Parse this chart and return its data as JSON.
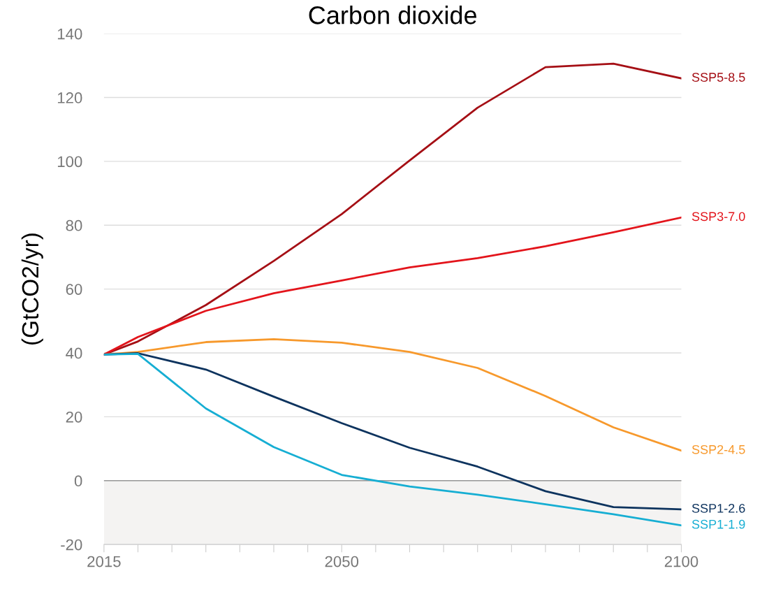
{
  "chart_data": {
    "type": "line",
    "title": "Carbon dioxide",
    "ylabel": "(GtCO2/yr)",
    "x": [
      2015,
      2020,
      2030,
      2040,
      2050,
      2060,
      2070,
      2080,
      2090,
      2100
    ],
    "series": [
      {
        "name": "SSP5-8.5",
        "color": "#a50f15",
        "values": [
          39.5,
          43.6,
          55,
          68.8,
          83.5,
          100.3,
          116.8,
          129.5,
          130.6,
          126
        ]
      },
      {
        "name": "SSP3-7.0",
        "color": "#e3141b",
        "values": [
          39.5,
          45,
          53.2,
          58.7,
          62.7,
          66.8,
          69.7,
          73.4,
          77.8,
          82.4
        ]
      },
      {
        "name": "SSP2-4.5",
        "color": "#f7992c",
        "values": [
          39.5,
          40.3,
          43.4,
          44.3,
          43.2,
          40.3,
          35.3,
          26.5,
          16.7,
          9.4
        ]
      },
      {
        "name": "SSP1-2.6",
        "color": "#0d335e",
        "values": [
          39.5,
          39.9,
          34.8,
          26.3,
          18,
          10.3,
          4.4,
          -3.3,
          -8.3,
          -9
        ]
      },
      {
        "name": "SSP1-1.9",
        "color": "#16aed3",
        "values": [
          39.5,
          39.7,
          22.6,
          10.5,
          1.8,
          -1.8,
          -4.4,
          -7.4,
          -10.5,
          -14
        ]
      }
    ],
    "xlim": [
      2015,
      2100
    ],
    "xticks": [
      2015,
      {
        "value": 2020,
        "label": null
      },
      {
        "value": 2025,
        "label": null
      },
      {
        "value": 2030,
        "label": null
      },
      {
        "value": 2035,
        "label": null
      },
      {
        "value": 2040,
        "label": null
      },
      {
        "value": 2045,
        "label": null
      },
      2050,
      {
        "value": 2055,
        "label": null
      },
      {
        "value": 2060,
        "label": null
      },
      {
        "value": 2065,
        "label": null
      },
      {
        "value": 2070,
        "label": null
      },
      {
        "value": 2075,
        "label": null
      },
      {
        "value": 2080,
        "label": null
      },
      {
        "value": 2085,
        "label": null
      },
      {
        "value": 2090,
        "label": null
      },
      {
        "value": 2095,
        "label": null
      },
      2100
    ],
    "ylim": [
      -20,
      140
    ],
    "yticks": [
      -20,
      0,
      20,
      40,
      60,
      80,
      100,
      120,
      140
    ],
    "ref_lines": [
      {
        "axis": "y",
        "value": 0,
        "color": "#999999"
      }
    ],
    "bands": [
      {
        "axis": "y",
        "from": -20,
        "to": 0,
        "color": "#f4f3f2"
      }
    ],
    "grid": "y",
    "legend": false,
    "marker": "none",
    "line_style": "solid"
  }
}
